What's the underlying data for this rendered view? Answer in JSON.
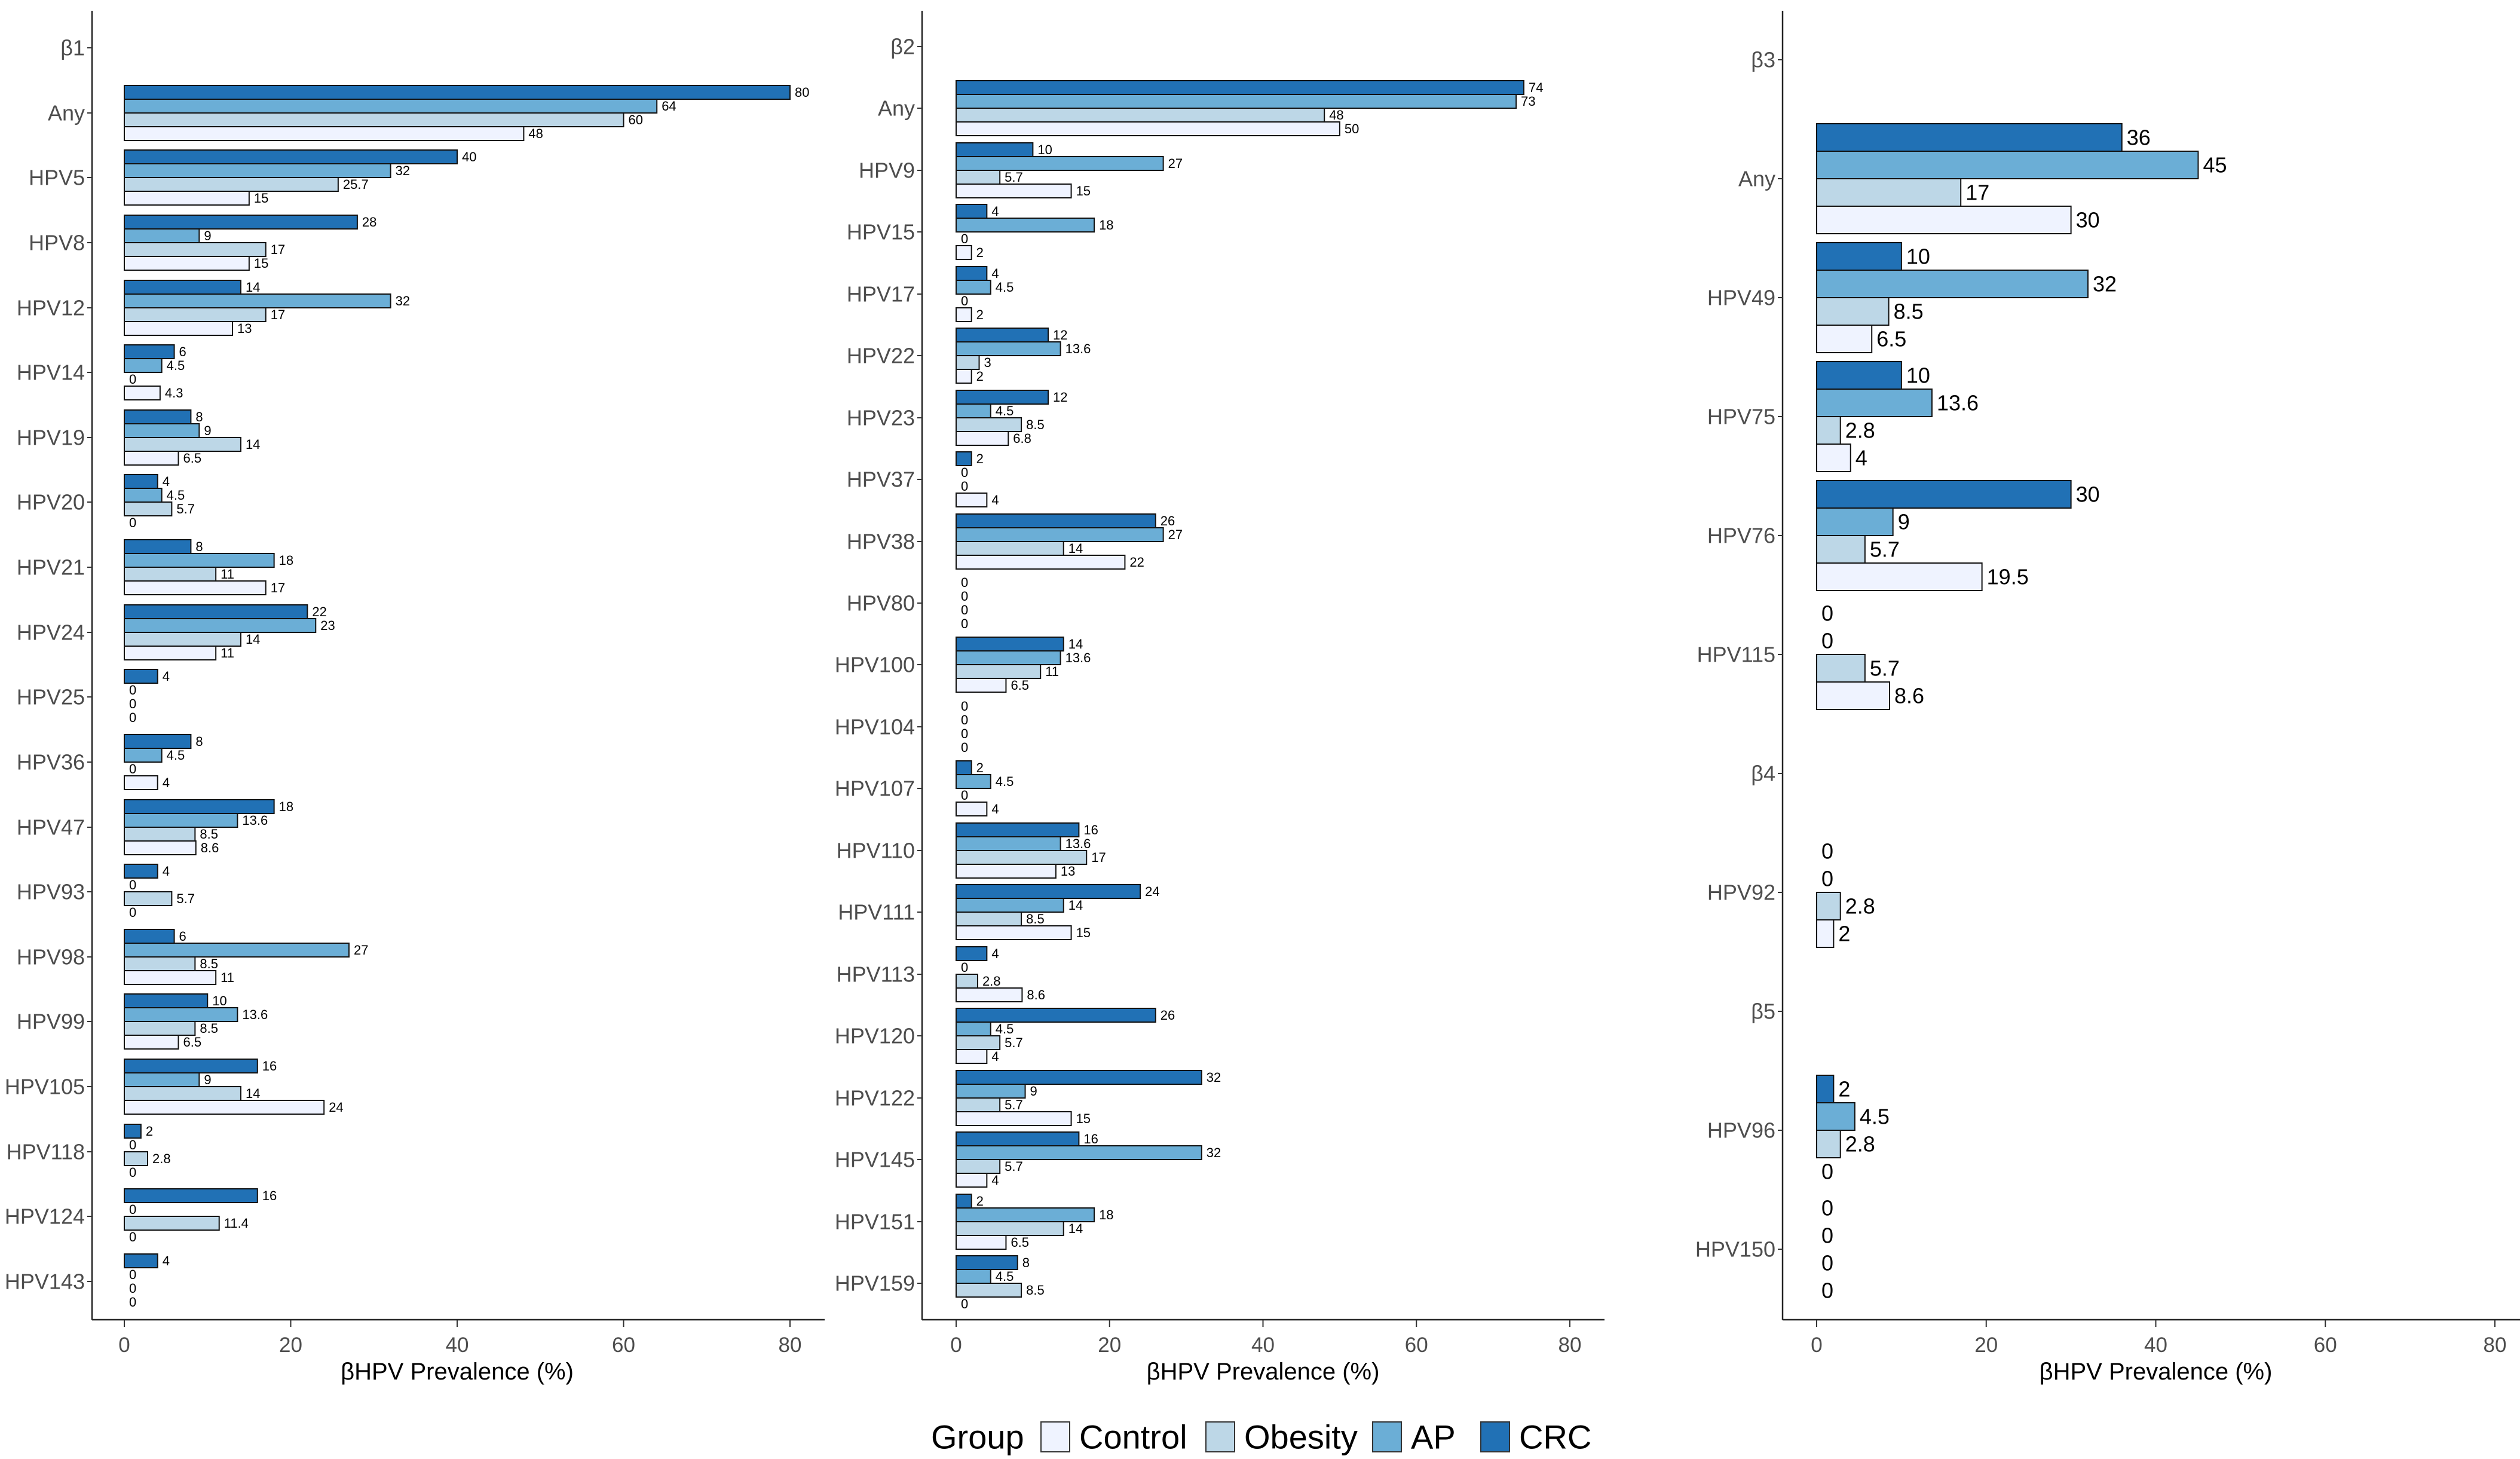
{
  "chart_data": [
    {
      "type": "bar",
      "orientation": "horizontal",
      "xlabel": "βHPV Prevalence (%)",
      "xlim": [
        0,
        80
      ],
      "xticks": [
        0,
        20,
        40,
        60,
        80
      ],
      "series_order": [
        "CRC",
        "AP",
        "Obesity",
        "Control"
      ],
      "rows": [
        {
          "label": "β1",
          "values": null
        },
        {
          "label": "Any",
          "values": [
            80,
            64,
            60,
            48
          ],
          "labels": [
            "80",
            "64",
            "60",
            "48"
          ]
        },
        {
          "label": "HPV5",
          "values": [
            40,
            32,
            25.7,
            15
          ],
          "labels": [
            "40",
            "32",
            "25.7",
            "15"
          ]
        },
        {
          "label": "HPV8",
          "values": [
            28,
            9,
            17,
            15
          ],
          "labels": [
            "28",
            "9",
            "17",
            "15"
          ]
        },
        {
          "label": "HPV12",
          "values": [
            14,
            32,
            17,
            13
          ],
          "labels": [
            "14",
            "32",
            "17",
            "13"
          ]
        },
        {
          "label": "HPV14",
          "values": [
            6,
            4.5,
            0,
            4.3
          ],
          "labels": [
            "6",
            "4.5",
            "0",
            "4.3"
          ]
        },
        {
          "label": "HPV19",
          "values": [
            8,
            9,
            14,
            6.5
          ],
          "labels": [
            "8",
            "9",
            "14",
            "6.5"
          ]
        },
        {
          "label": "HPV20",
          "values": [
            4,
            4.5,
            5.7,
            0
          ],
          "labels": [
            "4",
            "4.5",
            "5.7",
            "0"
          ]
        },
        {
          "label": "HPV21",
          "values": [
            8,
            18,
            11,
            17
          ],
          "labels": [
            "8",
            "18",
            "11",
            "17"
          ]
        },
        {
          "label": "HPV24",
          "values": [
            22,
            23,
            14,
            11
          ],
          "labels": [
            "22",
            "23",
            "14",
            "11"
          ]
        },
        {
          "label": "HPV25",
          "values": [
            4,
            0,
            0,
            0
          ],
          "labels": [
            "4",
            "0",
            "0",
            "0"
          ]
        },
        {
          "label": "HPV36",
          "values": [
            8,
            4.5,
            0,
            4
          ],
          "labels": [
            "8",
            "4.5",
            "0",
            "4"
          ]
        },
        {
          "label": "HPV47",
          "values": [
            18,
            13.6,
            8.5,
            8.6
          ],
          "labels": [
            "18",
            "13.6",
            "8.5",
            "8.6"
          ]
        },
        {
          "label": "HPV93",
          "values": [
            4,
            0,
            5.7,
            0
          ],
          "labels": [
            "4",
            "0",
            "5.7",
            "0"
          ]
        },
        {
          "label": "HPV98",
          "values": [
            6,
            27,
            8.5,
            11
          ],
          "labels": [
            "6",
            "27",
            "8.5",
            "11"
          ]
        },
        {
          "label": "HPV99",
          "values": [
            10,
            13.6,
            8.5,
            6.5
          ],
          "labels": [
            "10",
            "13.6",
            "8.5",
            "6.5"
          ]
        },
        {
          "label": "HPV105",
          "values": [
            16,
            9,
            14,
            24
          ],
          "labels": [
            "16",
            "9",
            "14",
            "24"
          ]
        },
        {
          "label": "HPV118",
          "values": [
            2,
            0,
            2.8,
            0
          ],
          "labels": [
            "2",
            "0",
            "2.8",
            "0"
          ]
        },
        {
          "label": "HPV124",
          "values": [
            16,
            0,
            11.4,
            0
          ],
          "labels": [
            "16",
            "0",
            "11.4",
            "0"
          ]
        },
        {
          "label": "HPV143",
          "values": [
            4,
            0,
            0,
            0
          ],
          "labels": [
            "4",
            "0",
            "0",
            "0"
          ]
        }
      ]
    },
    {
      "type": "bar",
      "orientation": "horizontal",
      "xlabel": "βHPV Prevalence (%)",
      "xlim": [
        0,
        80
      ],
      "xticks": [
        0,
        20,
        40,
        60,
        80
      ],
      "series_order": [
        "CRC",
        "AP",
        "Obesity",
        "Control"
      ],
      "rows": [
        {
          "label": "β2",
          "values": null
        },
        {
          "label": "Any",
          "values": [
            74,
            73,
            48,
            50
          ],
          "labels": [
            "74",
            "73",
            "48",
            "50"
          ]
        },
        {
          "label": "HPV9",
          "values": [
            10,
            27,
            5.7,
            15
          ],
          "labels": [
            "10",
            "27",
            "5.7",
            "15"
          ]
        },
        {
          "label": "HPV15",
          "values": [
            4,
            18,
            0,
            2
          ],
          "labels": [
            "4",
            "18",
            "0",
            "2"
          ]
        },
        {
          "label": "HPV17",
          "values": [
            4,
            4.5,
            0,
            2
          ],
          "labels": [
            "4",
            "4.5",
            "0",
            "2"
          ]
        },
        {
          "label": "HPV22",
          "values": [
            12,
            13.6,
            3,
            2
          ],
          "labels": [
            "12",
            "13.6",
            "3",
            "2"
          ]
        },
        {
          "label": "HPV23",
          "values": [
            12,
            4.5,
            8.5,
            6.8
          ],
          "labels": [
            "12",
            "4.5",
            "8.5",
            "6.8"
          ]
        },
        {
          "label": "HPV37",
          "values": [
            2,
            0,
            0,
            4
          ],
          "labels": [
            "2",
            "0",
            "0",
            "4"
          ]
        },
        {
          "label": "HPV38",
          "values": [
            26,
            27,
            14,
            22
          ],
          "labels": [
            "26",
            "27",
            "14",
            "22"
          ]
        },
        {
          "label": "HPV80",
          "values": [
            0,
            0,
            0,
            0
          ],
          "labels": [
            "0",
            "0",
            "0",
            "0"
          ]
        },
        {
          "label": "HPV100",
          "values": [
            14,
            13.6,
            11,
            6.5
          ],
          "labels": [
            "14",
            "13.6",
            "11",
            "6.5"
          ]
        },
        {
          "label": "HPV104",
          "values": [
            0,
            0,
            0,
            0
          ],
          "labels": [
            "0",
            "0",
            "0",
            "0"
          ]
        },
        {
          "label": "HPV107",
          "values": [
            2,
            4.5,
            0,
            4
          ],
          "labels": [
            "2",
            "4.5",
            "0",
            "4"
          ]
        },
        {
          "label": "HPV110",
          "values": [
            16,
            13.6,
            17,
            13
          ],
          "labels": [
            "16",
            "13.6",
            "17",
            "13"
          ]
        },
        {
          "label": "HPV111",
          "values": [
            24,
            14,
            8.5,
            15
          ],
          "labels": [
            "24",
            "14",
            "8.5",
            "15"
          ]
        },
        {
          "label": "HPV113",
          "values": [
            4,
            0,
            2.8,
            8.6
          ],
          "labels": [
            "4",
            "0",
            "2.8",
            "8.6"
          ]
        },
        {
          "label": "HPV120",
          "values": [
            26,
            4.5,
            5.7,
            4
          ],
          "labels": [
            "26",
            "4.5",
            "5.7",
            "4"
          ]
        },
        {
          "label": "HPV122",
          "values": [
            32,
            9,
            5.7,
            15
          ],
          "labels": [
            "32",
            "9",
            "5.7",
            "15"
          ]
        },
        {
          "label": "HPV145",
          "values": [
            16,
            32,
            5.7,
            4
          ],
          "labels": [
            "16",
            "32",
            "5.7",
            "4"
          ]
        },
        {
          "label": "HPV151",
          "values": [
            2,
            18,
            14,
            6.5
          ],
          "labels": [
            "2",
            "18",
            "14",
            "6.5"
          ]
        },
        {
          "label": "HPV159",
          "values": [
            8,
            4.5,
            8.5,
            0
          ],
          "labels": [
            "8",
            "4.5",
            "8.5",
            "0"
          ]
        }
      ]
    },
    {
      "type": "bar",
      "orientation": "horizontal",
      "xlabel": "βHPV Prevalence (%)",
      "xlim": [
        0,
        80
      ],
      "xticks": [
        0,
        20,
        40,
        60,
        80
      ],
      "series_order": [
        "CRC",
        "AP",
        "Obesity",
        "Control"
      ],
      "rows": [
        {
          "label": "β3",
          "values": null
        },
        {
          "label": "Any",
          "values": [
            36,
            45,
            17,
            30
          ],
          "labels": [
            "36",
            "45",
            "17",
            "30"
          ]
        },
        {
          "label": "HPV49",
          "values": [
            10,
            32,
            8.5,
            6.5
          ],
          "labels": [
            "10",
            "32",
            "8.5",
            "6.5"
          ]
        },
        {
          "label": "HPV75",
          "values": [
            10,
            13.6,
            2.8,
            4
          ],
          "labels": [
            "10",
            "13.6",
            "2.8",
            "4"
          ]
        },
        {
          "label": "HPV76",
          "values": [
            30,
            9,
            5.7,
            19.5
          ],
          "labels": [
            "30",
            "9",
            "5.7",
            "19.5"
          ]
        },
        {
          "label": "HPV115",
          "values": [
            0,
            0,
            5.7,
            8.6
          ],
          "labels": [
            "0",
            "0",
            "5.7",
            "8.6"
          ]
        },
        {
          "label": "β4",
          "values": null
        },
        {
          "label": "HPV92",
          "values": [
            0,
            0,
            2.8,
            2
          ],
          "labels": [
            "0",
            "0",
            "2.8",
            "2"
          ]
        },
        {
          "label": "β5",
          "values": null
        },
        {
          "label": "HPV96",
          "values": [
            2,
            4.5,
            2.8,
            0
          ],
          "labels": [
            "2",
            "4.5",
            "2.8",
            "0"
          ]
        },
        {
          "label": "HPV150",
          "values": [
            0,
            0,
            0,
            0
          ],
          "labels": [
            "0",
            "0",
            "0",
            "0"
          ]
        }
      ]
    }
  ],
  "legend": {
    "title": "Group",
    "position": "bottom",
    "items": [
      {
        "name": "Control",
        "color": "#eff3ff"
      },
      {
        "name": "Obesity",
        "color": "#bdd7e7"
      },
      {
        "name": "AP",
        "color": "#6baed6"
      },
      {
        "name": "CRC",
        "color": "#2171b5"
      }
    ]
  },
  "series_colors": {
    "CRC": "#2171b5",
    "AP": "#6baed6",
    "Obesity": "#bdd7e7",
    "Control": "#eff3ff"
  }
}
